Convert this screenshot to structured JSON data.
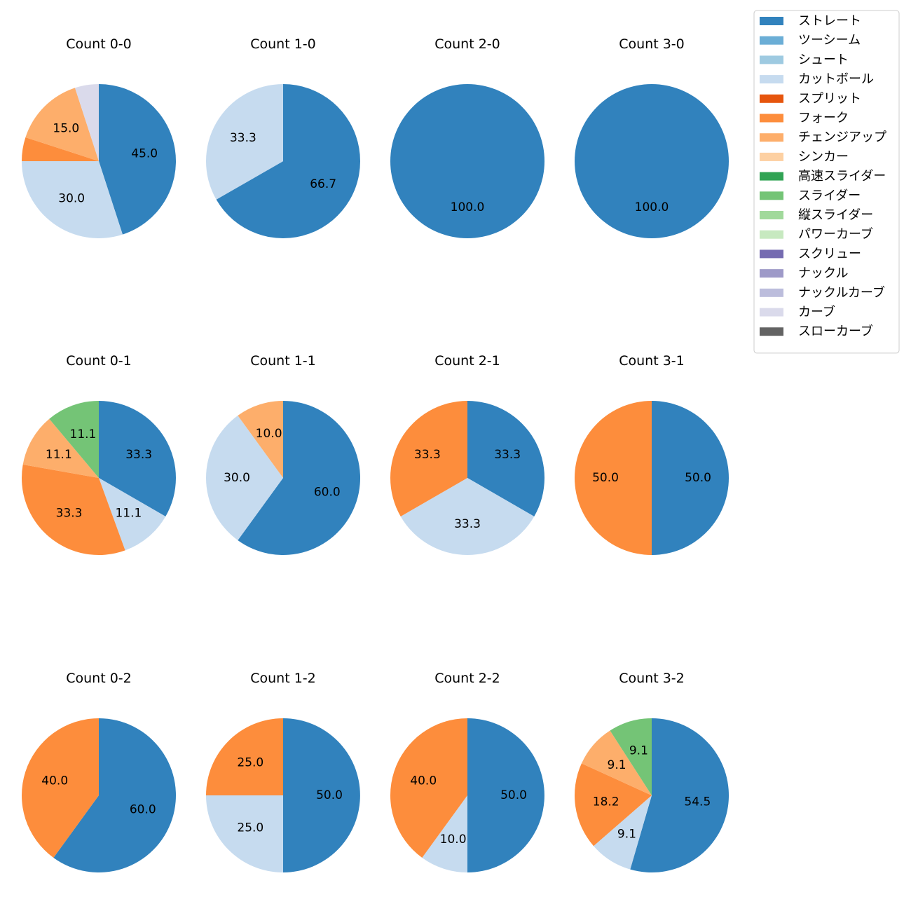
{
  "chart_data": {
    "type": "pie",
    "legend_position": "top-right",
    "categories": [
      {
        "name": "ストレート",
        "color": "#3182bd"
      },
      {
        "name": "ツーシーム",
        "color": "#6baed6"
      },
      {
        "name": "シュート",
        "color": "#9ecae1"
      },
      {
        "name": "カットボール",
        "color": "#c6dbef"
      },
      {
        "name": "スプリット",
        "color": "#e6550d"
      },
      {
        "name": "フォーク",
        "color": "#fd8d3c"
      },
      {
        "name": "チェンジアップ",
        "color": "#fdae6b"
      },
      {
        "name": "シンカー",
        "color": "#fdd0a2"
      },
      {
        "name": "高速スライダー",
        "color": "#31a354"
      },
      {
        "name": "スライダー",
        "color": "#74c476"
      },
      {
        "name": "縦スライダー",
        "color": "#a1d99b"
      },
      {
        "name": "パワーカーブ",
        "color": "#c7e9c0"
      },
      {
        "name": "スクリュー",
        "color": "#756bb1"
      },
      {
        "name": "ナックル",
        "color": "#9e9ac8"
      },
      {
        "name": "ナックルカーブ",
        "color": "#bcbddc"
      },
      {
        "name": "カーブ",
        "color": "#dadaeb"
      },
      {
        "name": "スローカーブ",
        "color": "#636363"
      }
    ],
    "panels": [
      {
        "title": "Count 0-0",
        "slices": [
          {
            "category": "ストレート",
            "value": 45.0,
            "label": "45.0"
          },
          {
            "category": "カットボール",
            "value": 30.0,
            "label": "30.0"
          },
          {
            "category": "フォーク",
            "value": 5.0,
            "label": ""
          },
          {
            "category": "チェンジアップ",
            "value": 15.0,
            "label": "15.0"
          },
          {
            "category": "カーブ",
            "value": 5.0,
            "label": ""
          }
        ]
      },
      {
        "title": "Count 1-0",
        "slices": [
          {
            "category": "ストレート",
            "value": 66.7,
            "label": "66.7"
          },
          {
            "category": "カットボール",
            "value": 33.3,
            "label": "33.3"
          }
        ]
      },
      {
        "title": "Count 2-0",
        "slices": [
          {
            "category": "ストレート",
            "value": 100.0,
            "label": "100.0"
          }
        ]
      },
      {
        "title": "Count 3-0",
        "slices": [
          {
            "category": "ストレート",
            "value": 100.0,
            "label": "100.0"
          }
        ]
      },
      {
        "title": "Count 0-1",
        "slices": [
          {
            "category": "ストレート",
            "value": 33.3,
            "label": "33.3"
          },
          {
            "category": "カットボール",
            "value": 11.1,
            "label": "11.1"
          },
          {
            "category": "フォーク",
            "value": 33.3,
            "label": "33.3"
          },
          {
            "category": "チェンジアップ",
            "value": 11.1,
            "label": "11.1"
          },
          {
            "category": "スライダー",
            "value": 11.1,
            "label": "11.1"
          }
        ]
      },
      {
        "title": "Count 1-1",
        "slices": [
          {
            "category": "ストレート",
            "value": 60.0,
            "label": "60.0"
          },
          {
            "category": "カットボール",
            "value": 30.0,
            "label": "30.0"
          },
          {
            "category": "チェンジアップ",
            "value": 10.0,
            "label": "10.0"
          }
        ]
      },
      {
        "title": "Count 2-1",
        "slices": [
          {
            "category": "ストレート",
            "value": 33.3,
            "label": "33.3"
          },
          {
            "category": "カットボール",
            "value": 33.3,
            "label": "33.3"
          },
          {
            "category": "フォーク",
            "value": 33.3,
            "label": "33.3"
          }
        ]
      },
      {
        "title": "Count 3-1",
        "slices": [
          {
            "category": "ストレート",
            "value": 50.0,
            "label": "50.0"
          },
          {
            "category": "フォーク",
            "value": 50.0,
            "label": "50.0"
          }
        ]
      },
      {
        "title": "Count 0-2",
        "slices": [
          {
            "category": "ストレート",
            "value": 60.0,
            "label": "60.0"
          },
          {
            "category": "フォーク",
            "value": 40.0,
            "label": "40.0"
          }
        ]
      },
      {
        "title": "Count 1-2",
        "slices": [
          {
            "category": "ストレート",
            "value": 50.0,
            "label": "50.0"
          },
          {
            "category": "カットボール",
            "value": 25.0,
            "label": "25.0"
          },
          {
            "category": "フォーク",
            "value": 25.0,
            "label": "25.0"
          }
        ]
      },
      {
        "title": "Count 2-2",
        "slices": [
          {
            "category": "ストレート",
            "value": 50.0,
            "label": "50.0"
          },
          {
            "category": "カットボール",
            "value": 10.0,
            "label": "10.0"
          },
          {
            "category": "フォーク",
            "value": 40.0,
            "label": "40.0"
          }
        ]
      },
      {
        "title": "Count 3-2",
        "slices": [
          {
            "category": "ストレート",
            "value": 54.5,
            "label": "54.5"
          },
          {
            "category": "カットボール",
            "value": 9.1,
            "label": "9.1"
          },
          {
            "category": "フォーク",
            "value": 18.2,
            "label": "18.2"
          },
          {
            "category": "チェンジアップ",
            "value": 9.1,
            "label": "9.1"
          },
          {
            "category": "スライダー",
            "value": 9.1,
            "label": "9.1"
          }
        ]
      }
    ]
  }
}
